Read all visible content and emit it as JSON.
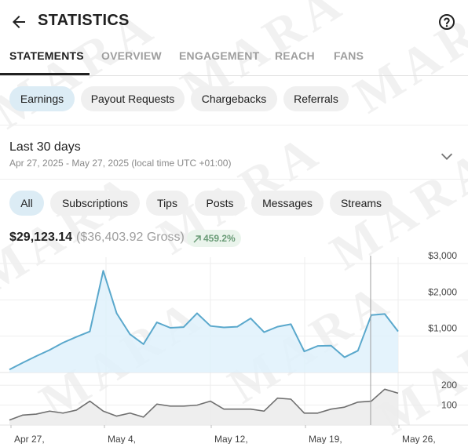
{
  "header": {
    "title": "STATISTICS"
  },
  "tabs": [
    {
      "label": "STATEMENTS",
      "active": true
    },
    {
      "label": "OVERVIEW"
    },
    {
      "label": "ENGAGEMENT"
    },
    {
      "label": "REACH"
    },
    {
      "label": "FANS"
    }
  ],
  "statement_types": [
    {
      "label": "Earnings",
      "selected": true
    },
    {
      "label": "Payout Requests"
    },
    {
      "label": "Chargebacks"
    },
    {
      "label": "Referrals"
    }
  ],
  "period": {
    "label": "Last 30 days",
    "range": "Apr 27, 2025 - May 27, 2025 (local time UTC +01:00)"
  },
  "filters": [
    {
      "label": "All",
      "selected": true
    },
    {
      "label": "Subscriptions"
    },
    {
      "label": "Tips"
    },
    {
      "label": "Posts"
    },
    {
      "label": "Messages"
    },
    {
      "label": "Streams"
    }
  ],
  "summary": {
    "net": "$29,123.14",
    "gross": "($36,403.92 Gross)",
    "change": "459.2%"
  },
  "watermark": "MARA",
  "colors": {
    "earnings_line": "#5aa8cc",
    "earnings_fill": "#dff1fb",
    "count_line": "#6f6f6f",
    "count_fill": "#ececec",
    "chip_selected": "#dcecf5",
    "badge_text": "#6a9c77"
  },
  "chart_data": {
    "type": "area",
    "x_ticks": [
      "Apr 27,",
      "May 4,",
      "May 12,",
      "May 19,",
      "May 26,"
    ],
    "top": {
      "name": "",
      "y_ticks": [
        "$1,000",
        "$2,000",
        "$3,000"
      ],
      "ylim": [
        0,
        3000
      ],
      "values": [
        80,
        270,
        450,
        620,
        820,
        980,
        1130,
        2800,
        1630,
        1050,
        780,
        1380,
        1230,
        1250,
        1630,
        1280,
        1240,
        1260,
        1490,
        1110,
        1260,
        1330,
        580,
        730,
        740,
        420,
        600,
        1580,
        1610,
        1130
      ]
    },
    "bottom": {
      "name": "",
      "y_ticks": [
        "100",
        "200"
      ],
      "ylim": [
        0,
        260
      ],
      "values": [
        25,
        50,
        55,
        70,
        60,
        75,
        120,
        70,
        45,
        60,
        40,
        105,
        95,
        95,
        100,
        120,
        80,
        80,
        80,
        70,
        135,
        130,
        60,
        60,
        80,
        90,
        115,
        120,
        180,
        160
      ]
    },
    "grid": true
  }
}
